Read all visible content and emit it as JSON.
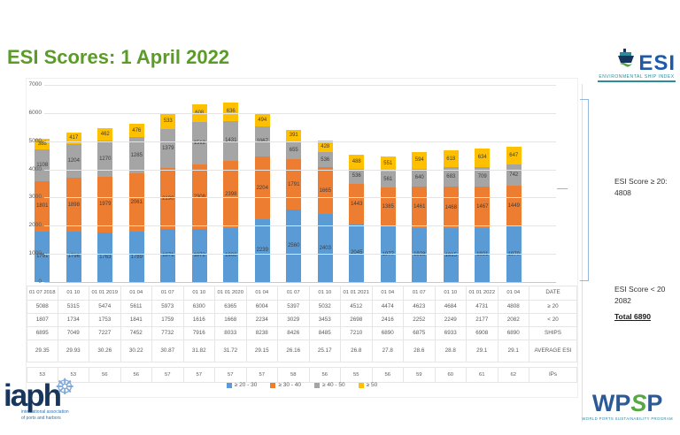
{
  "title": "ESI Scores: 1 April 2022",
  "esi_logo": {
    "name": "ESI",
    "tagline": "ENVIRONMENTAL SHIP INDEX"
  },
  "chart_data": {
    "type": "bar",
    "stacked": true,
    "categories": [
      "01 07 2018",
      "01 10",
      "01 01 2019",
      "01 04",
      "01 07",
      "01 10",
      "01 01 2020",
      "01 04",
      "01 07",
      "01 10",
      "01 01 2021",
      "01 04",
      "01 07",
      "01 10",
      "01 01 2022",
      "01 04"
    ],
    "series": [
      {
        "name": "≥ 20 - 30",
        "color": "#5B9BD5",
        "values": [
          1791,
          1796,
          1763,
          1789,
          1871,
          1872,
          1900,
          2239,
          2560,
          2403,
          2045,
          1977,
          1928,
          1915,
          1921,
          1970
        ]
      },
      {
        "name": "≥ 30 - 40",
        "color": "#ED7D31",
        "values": [
          1801,
          1898,
          1979,
          2061,
          2190,
          2308,
          2398,
          2204,
          1791,
          1665,
          1443,
          1385,
          1461,
          1468,
          1467,
          1449
        ]
      },
      {
        "name": "≥ 40 - 50",
        "color": "#A5A5A5",
        "values": [
          1108,
          1204,
          1270,
          1285,
          1379,
          1512,
          1431,
          1067,
          655,
          536,
          536,
          561,
          640,
          683,
          709,
          742
        ]
      },
      {
        "name": "≥ 50",
        "color": "#FFC000",
        "values": [
          388,
          417,
          462,
          476,
          533,
          608,
          636,
          494,
          391,
          428,
          488,
          551,
          594,
          618,
          634,
          647
        ]
      }
    ],
    "title": "ESI Scores: 1 April 2022",
    "xlabel": "",
    "ylabel": "",
    "ylim": [
      0,
      7000
    ],
    "ytick_step": 1000,
    "grid": true,
    "legend_position": "bottom"
  },
  "table": {
    "row_labels": [
      "DATE",
      "≥ 20",
      "< 20",
      "SHIPS",
      "AVERAGE ESI",
      "IPs"
    ],
    "rows": {
      "date": [
        "01 07 2018",
        "01 10",
        "01 01 2019",
        "01 04",
        "01 07",
        "01 10",
        "01 01 2020",
        "01 04",
        "01 07",
        "01 10",
        "01 01 2021",
        "01 04",
        "01 07",
        "01 10",
        "01 01 2022",
        "01 04"
      ],
      "ge20": [
        "5088",
        "5315",
        "5474",
        "5611",
        "5973",
        "6300",
        "6365",
        "6004",
        "5397",
        "5032",
        "4512",
        "4474",
        "4623",
        "4684",
        "4731",
        "4808"
      ],
      "lt20": [
        "1807",
        "1734",
        "1753",
        "1841",
        "1759",
        "1616",
        "1668",
        "2234",
        "3029",
        "3453",
        "2698",
        "2416",
        "2252",
        "2249",
        "2177",
        "2082"
      ],
      "ships": [
        "6895",
        "7049",
        "7227",
        "7452",
        "7732",
        "7916",
        "8033",
        "8238",
        "8426",
        "8485",
        "7210",
        "6890",
        "6875",
        "6933",
        "6908",
        "6890"
      ],
      "avg": [
        "29.35",
        "29.93",
        "30.26",
        "30.22",
        "30.87",
        "31.82",
        "31.72",
        "29.15",
        "26.16",
        "25.17",
        "26.8",
        "27.8",
        "28.6",
        "28.8",
        "29.1",
        "29.1"
      ],
      "ips": [
        "53",
        "53",
        "56",
        "56",
        "57",
        "57",
        "57",
        "57",
        "58",
        "56",
        "55",
        "56",
        "59",
        "60",
        "61",
        "62"
      ]
    }
  },
  "annotations": {
    "ge20_label": "ESI Score  ≥ 20:",
    "ge20_value": "4808",
    "lt20_label": "ESI Score < 20",
    "lt20_value": "2082",
    "total": "Total 6890"
  },
  "footer": {
    "iaph": {
      "name": "iaph",
      "sub1": "international association",
      "sub2": "of ports and harbors"
    },
    "wpsp": {
      "w1": "WP",
      "s": "S",
      "w2": "P",
      "sub": "WORLD PORTS SUSTAINABILITY PROGRAM"
    }
  }
}
